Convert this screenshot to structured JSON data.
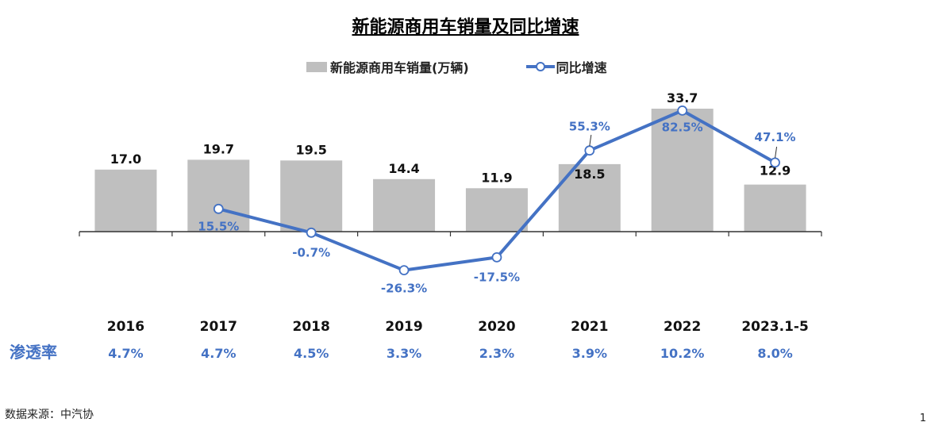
{
  "colors": {
    "bar": "#bfbfbf",
    "line": "#4472c4",
    "pen_label": "#4472c4"
  },
  "title": "新能源商用车销量及同比增速",
  "source": "数据来源：中汽协",
  "page_number": "1",
  "chart_data": {
    "type": "bar",
    "title": "新能源商用车销量及同比增速",
    "categories": [
      "2016",
      "2017",
      "2018",
      "2019",
      "2020",
      "2021",
      "2022",
      "2023.1-5"
    ],
    "series": [
      {
        "name": "新能源商用车销量(万辆)",
        "type": "bar",
        "values": [
          17.0,
          19.7,
          19.5,
          14.4,
          11.9,
          18.5,
          33.7,
          12.9
        ],
        "labels": [
          "17.0",
          "19.7",
          "19.5",
          "14.4",
          "11.9",
          "18.5",
          "33.7",
          "12.9"
        ]
      },
      {
        "name": "同比增速",
        "type": "line",
        "values": [
          null,
          15.5,
          -0.7,
          -26.3,
          -17.5,
          55.3,
          82.5,
          47.1
        ],
        "labels": [
          "",
          "15.5%",
          "-0.7%",
          "-26.3%",
          "-17.5%",
          "55.3%",
          "82.5%",
          "47.1%"
        ]
      }
    ],
    "penetration": {
      "label": "渗透率",
      "values": [
        "4.7%",
        "4.7%",
        "4.5%",
        "3.3%",
        "2.3%",
        "3.9%",
        "10.2%",
        "8.0%"
      ]
    },
    "legend_position": "top",
    "grid": false
  }
}
